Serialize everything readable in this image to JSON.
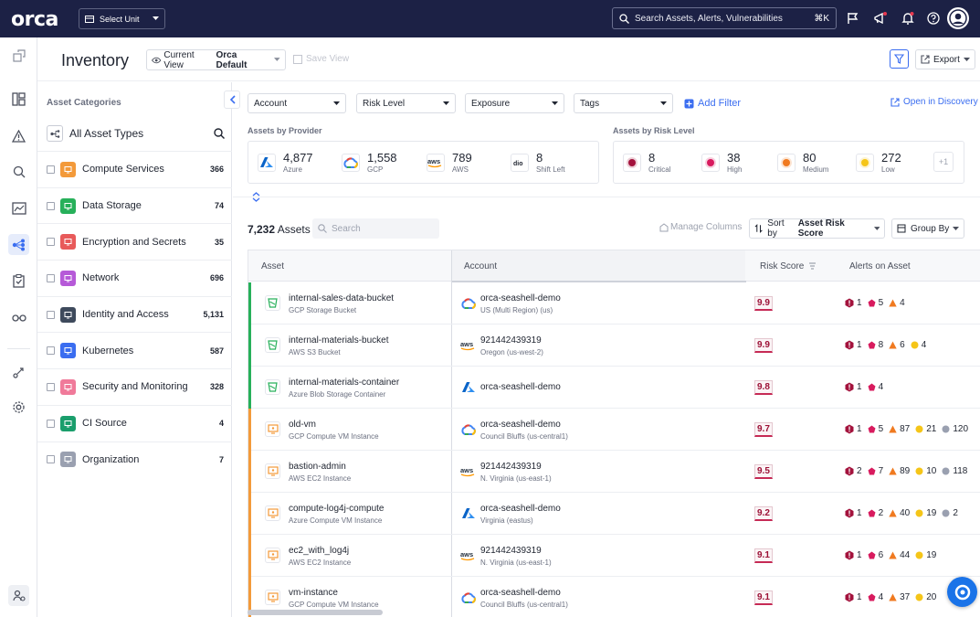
{
  "topbar": {
    "logo_text": "orca",
    "unit_label": "Select Unit",
    "search_placeholder": "Search Assets, Alerts, Vulnerabilities",
    "search_shortcut": "⌘K"
  },
  "header": {
    "title": "Inventory",
    "view_prefix": "Current View",
    "view_name": "Orca Default",
    "save_view": "Save View",
    "export": "Export"
  },
  "categories": {
    "heading": "Asset Categories",
    "all_label": "All Asset Types",
    "items": [
      {
        "label": "Compute Services",
        "count": "366",
        "color": "#f39a3a"
      },
      {
        "label": "Data Storage",
        "count": "74",
        "color": "#27b05a"
      },
      {
        "label": "Encryption and Secrets",
        "count": "35",
        "color": "#e85a5a"
      },
      {
        "label": "Network",
        "count": "696",
        "color": "#b65ad8"
      },
      {
        "label": "Identity and Access",
        "count": "5,131",
        "color": "#3e4a5c"
      },
      {
        "label": "Kubernetes",
        "count": "587",
        "color": "#3a6df0"
      },
      {
        "label": "Security and Monitoring",
        "count": "328",
        "color": "#f07a9a"
      },
      {
        "label": "CI Source",
        "count": "4",
        "color": "#1a9e6c"
      },
      {
        "label": "Organization",
        "count": "7",
        "color": "#9aa0b0"
      }
    ]
  },
  "filters": {
    "account": "Account",
    "risk_level": "Risk Level",
    "exposure": "Exposure",
    "tags": "Tags",
    "add_filter": "Add Filter",
    "open_discovery": "Open in Discovery"
  },
  "summary": {
    "provider_label": "Assets by Provider",
    "risk_label": "Assets by Risk Level",
    "providers": [
      {
        "count": "4,877",
        "name": "Azure"
      },
      {
        "count": "1,558",
        "name": "GCP"
      },
      {
        "count": "789",
        "name": "AWS"
      },
      {
        "count": "8",
        "name": "Shift Left"
      }
    ],
    "risks": [
      {
        "count": "8",
        "name": "Critical",
        "color": "#a3123c"
      },
      {
        "count": "38",
        "name": "High",
        "color": "#d81b5e"
      },
      {
        "count": "80",
        "name": "Medium",
        "color": "#f07a20"
      },
      {
        "count": "272",
        "name": "Low",
        "color": "#f5c518"
      }
    ],
    "more": "+1"
  },
  "toolbar": {
    "count_value": "7,232",
    "count_label": "Assets",
    "search_placeholder": "Search",
    "manage_columns": "Manage Columns",
    "sort_prefix": "Sort by",
    "sort_value": "Asset Risk Score",
    "group_by": "Group By"
  },
  "table": {
    "headers": {
      "asset": "Asset",
      "account": "Account",
      "risk": "Risk Score",
      "alerts": "Alerts on Asset"
    },
    "rows": [
      {
        "name": "internal-sales-data-bucket",
        "type": "GCP Storage Bucket",
        "account": "orca-seashell-demo",
        "region": "US (Multi Region) (us)",
        "provider": "gcp",
        "score": "9.9",
        "kind": "storage",
        "alerts": {
          "critical": "1",
          "high": "5",
          "medium": "4",
          "low": "",
          "info": ""
        }
      },
      {
        "name": "internal-materials-bucket",
        "type": "AWS S3 Bucket",
        "account": "921442439319",
        "region": "Oregon (us-west-2)",
        "provider": "aws",
        "score": "9.9",
        "kind": "storage",
        "alerts": {
          "critical": "1",
          "high": "8",
          "medium": "6",
          "low": "4",
          "info": ""
        }
      },
      {
        "name": "internal-materials-container",
        "type": "Azure Blob Storage Container",
        "account": "orca-seashell-demo",
        "region": "",
        "provider": "azure",
        "score": "9.8",
        "kind": "storage",
        "alerts": {
          "critical": "1",
          "high": "4",
          "medium": "",
          "low": "",
          "info": ""
        }
      },
      {
        "name": "old-vm",
        "type": "GCP Compute VM Instance",
        "account": "orca-seashell-demo",
        "region": "Council Bluffs (us-central1)",
        "provider": "gcp",
        "score": "9.7",
        "kind": "compute",
        "alerts": {
          "critical": "1",
          "high": "5",
          "medium": "87",
          "low": "21",
          "info": "120"
        }
      },
      {
        "name": "bastion-admin",
        "type": "AWS EC2 Instance",
        "account": "921442439319",
        "region": "N. Virginia (us-east-1)",
        "provider": "aws",
        "score": "9.5",
        "kind": "compute",
        "alerts": {
          "critical": "2",
          "high": "7",
          "medium": "89",
          "low": "10",
          "info": "118"
        }
      },
      {
        "name": "compute-log4j-compute",
        "type": "Azure Compute VM Instance",
        "account": "orca-seashell-demo",
        "region": "Virginia (eastus)",
        "provider": "azure",
        "score": "9.2",
        "kind": "compute",
        "alerts": {
          "critical": "1",
          "high": "2",
          "medium": "40",
          "low": "19",
          "info": "2"
        }
      },
      {
        "name": "ec2_with_log4j",
        "type": "AWS EC2 Instance",
        "account": "921442439319",
        "region": "N. Virginia (us-east-1)",
        "provider": "aws",
        "score": "9.1",
        "kind": "compute",
        "alerts": {
          "critical": "1",
          "high": "6",
          "medium": "44",
          "low": "19",
          "info": ""
        }
      },
      {
        "name": "vm-instance",
        "type": "GCP Compute VM Instance",
        "account": "orca-seashell-demo",
        "region": "Council Bluffs (us-central1)",
        "provider": "gcp",
        "score": "9.1",
        "kind": "compute",
        "alerts": {
          "critical": "1",
          "high": "4",
          "medium": "37",
          "low": "20",
          "info": ""
        }
      }
    ]
  },
  "colors": {
    "accent": "#3a6df0",
    "topbar": "#1c2145",
    "storage_strip": "#27b05a",
    "compute_strip": "#f39a3a"
  }
}
